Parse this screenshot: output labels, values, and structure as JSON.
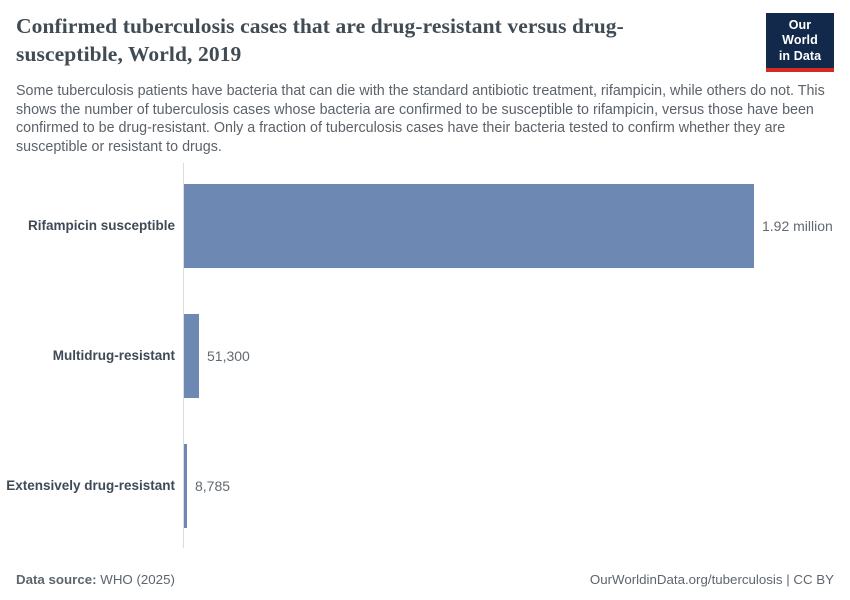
{
  "header": {
    "title": "Confirmed tuberculosis cases that are drug-resistant versus drug-susceptible, World, 2019",
    "subtitle": "Some tuberculosis patients have bacteria that can die with the standard antibiotic treatment, rifampicin, while others do not. This shows the number of tuberculosis cases whose bacteria are confirmed to be susceptible to rifampicin, versus those have been confirmed to be drug-resistant. Only a fraction of tuberculosis cases have their bacteria tested to confirm whether they are susceptible or resistant to drugs."
  },
  "logo": {
    "line1": "Our World",
    "line2": "in Data",
    "bg_color": "#12294b",
    "stripe_color": "#d52a1f"
  },
  "chart_data": {
    "type": "bar",
    "orientation": "horizontal",
    "title": "Confirmed tuberculosis cases that are drug-resistant versus drug-susceptible, World, 2019",
    "categories": [
      "Rifampicin susceptible",
      "Multidrug-resistant",
      "Extensively drug-resistant"
    ],
    "values": [
      1920000,
      51300,
      8785
    ],
    "value_labels": [
      "1.92 million",
      "51,300",
      "8,785"
    ],
    "x_max": 1920000,
    "xlabel": "",
    "ylabel": "",
    "grid": false,
    "legend": "none",
    "bar_color": "#6d88b3",
    "axis_line_color": "#dadde0"
  },
  "footer": {
    "source_label": "Data source:",
    "source_value": "WHO (2025)",
    "right_text": "OurWorldinData.org/tuberculosis | CC BY"
  }
}
